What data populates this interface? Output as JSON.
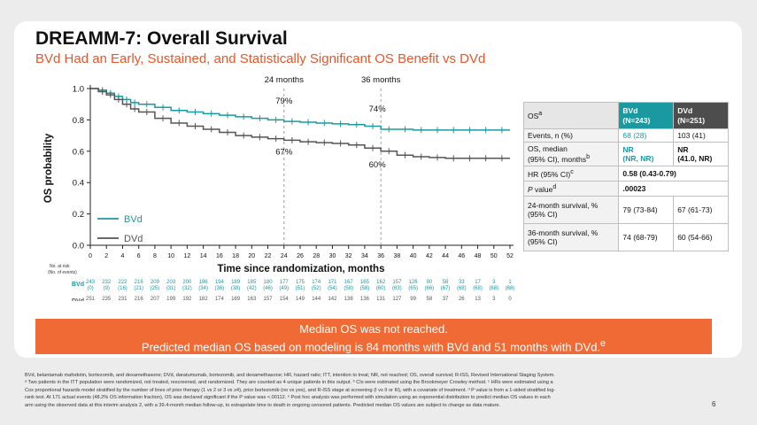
{
  "page": {
    "title": "DREAMM-7: Overall Survival",
    "subtitle": "BVd Had an Early, Sustained, and Statistically Significant OS Benefit vs DVd",
    "page_number": "6"
  },
  "colors": {
    "bvd": "#1a9aa0",
    "dvd": "#555555",
    "banner": "#f06a35",
    "accent": "#e8562a"
  },
  "chart_data": {
    "type": "line",
    "xlabel": "Time since randomization, months",
    "ylabel": "OS probability",
    "xlim": [
      0,
      52
    ],
    "ylim": [
      0,
      1.0
    ],
    "xticks": [
      "0",
      "2",
      "4",
      "6",
      "8",
      "10",
      "12",
      "14",
      "16",
      "18",
      "20",
      "22",
      "24",
      "26",
      "28",
      "30",
      "32",
      "34",
      "36",
      "38",
      "40",
      "42",
      "44",
      "46",
      "48",
      "50",
      "52"
    ],
    "yticks": [
      "0.0",
      "0.2",
      "0.4",
      "0.6",
      "0.8",
      "1.0"
    ],
    "landmarks": [
      {
        "x": 24,
        "label": "24 months",
        "bvd_pct": "79%",
        "dvd_pct": "67%"
      },
      {
        "x": 36,
        "label": "36 months",
        "bvd_pct": "74%",
        "dvd_pct": "60%"
      }
    ],
    "series": [
      {
        "name": "BVd",
        "x": [
          0,
          1,
          2,
          3,
          4,
          5,
          6,
          8,
          10,
          12,
          14,
          16,
          18,
          20,
          22,
          24,
          26,
          28,
          30,
          32,
          34,
          36,
          38,
          40,
          42,
          44,
          46,
          48,
          50,
          52
        ],
        "values": [
          1.0,
          0.99,
          0.97,
          0.95,
          0.93,
          0.91,
          0.9,
          0.88,
          0.86,
          0.85,
          0.84,
          0.83,
          0.82,
          0.81,
          0.8,
          0.79,
          0.785,
          0.78,
          0.775,
          0.77,
          0.76,
          0.74,
          0.74,
          0.735,
          0.735,
          0.735,
          0.735,
          0.735,
          0.735,
          0.735
        ]
      },
      {
        "name": "DVd",
        "x": [
          0,
          1,
          2,
          3,
          4,
          5,
          6,
          8,
          10,
          12,
          14,
          16,
          18,
          20,
          22,
          24,
          26,
          28,
          30,
          32,
          34,
          36,
          38,
          40,
          42,
          44,
          46,
          48,
          50,
          52
        ],
        "values": [
          1.0,
          0.98,
          0.96,
          0.93,
          0.9,
          0.87,
          0.85,
          0.81,
          0.78,
          0.76,
          0.74,
          0.72,
          0.7,
          0.69,
          0.68,
          0.67,
          0.66,
          0.655,
          0.65,
          0.64,
          0.62,
          0.6,
          0.575,
          0.565,
          0.56,
          0.555,
          0.555,
          0.555,
          0.555,
          0.555
        ]
      }
    ],
    "legend": [
      {
        "name": "BVd"
      },
      {
        "name": "DVd"
      }
    ],
    "risk_table": {
      "header": [
        "No. at risk",
        "(No. of events)"
      ],
      "rows": [
        {
          "name": "BVd",
          "at_risk": [
            "243",
            "232",
            "222",
            "216",
            "209",
            "203",
            "200",
            "196",
            "194",
            "189",
            "185",
            "180",
            "177",
            "175",
            "174",
            "171",
            "167",
            "165",
            "162",
            "157",
            "126",
            "90",
            "58",
            "33",
            "17",
            "3",
            "1"
          ],
          "events": [
            "(0)",
            "(9)",
            "(16)",
            "(21)",
            "(25)",
            "(31)",
            "(32)",
            "(34)",
            "(36)",
            "(38)",
            "(42)",
            "(46)",
            "(49)",
            "(51)",
            "(52)",
            "(54)",
            "(58)",
            "(58)",
            "(60)",
            "(63)",
            "(65)",
            "(66)",
            "(67)",
            "(68)",
            "(68)",
            "(68)",
            "(68)"
          ]
        },
        {
          "name": "DVd",
          "at_risk": [
            "251",
            "235",
            "231",
            "216",
            "207",
            "199",
            "192",
            "182",
            "174",
            "169",
            "163",
            "157",
            "154",
            "149",
            "144",
            "142",
            "138",
            "136",
            "131",
            "127",
            "99",
            "58",
            "37",
            "26",
            "13",
            "3",
            "0"
          ],
          "events": [
            "(0)",
            "(13)",
            "(15)",
            "(26)",
            "(34)",
            "(40)",
            "(47)",
            "(53)",
            "(62)",
            "(66)",
            "(71)",
            "(75)",
            "(78)",
            "(81)",
            "(85)",
            "(85)",
            "(88)",
            "(90)",
            "(94)",
            "(95)",
            "(100)",
            "(102)",
            "(103)",
            "(103)",
            "(103)",
            "(103)",
            "(103)"
          ]
        }
      ]
    }
  },
  "table": {
    "header": {
      "label": "OS",
      "label_sup": "a",
      "bvd": "BVd",
      "bvd_n": "(N=243)",
      "dvd": "DVd",
      "dvd_n": "(N=251)"
    },
    "rows": [
      {
        "label": "Events, n (%)",
        "bvd": "68 (28)",
        "dvd": "103 (41)"
      },
      {
        "label": "OS, median",
        "label2": "(95% CI), months",
        "label_sup": "b",
        "bvd": "NR",
        "bvd2": "(NR, NR)",
        "dvd": "NR",
        "dvd2": "(41.0, NR)"
      },
      {
        "label": "HR  (95% CI)",
        "label_sup": "c",
        "value": "0.58 (0.43-0.79)"
      },
      {
        "label_italic": "P",
        "label": " value",
        "label_sup": "d",
        "value": ".00023"
      },
      {
        "label": "24-month survival, %",
        "label2": "(95% CI)",
        "bvd": "79 (73-84)",
        "dvd": "67 (61-73)"
      },
      {
        "label": "36-month survival, %",
        "label2": "(95% CI)",
        "bvd": "74 (68-79)",
        "dvd": "60 (54-66)"
      }
    ]
  },
  "banner": {
    "line1": "Median OS was not reached.",
    "line2": "Predicted median OS based on modeling is 84 months with BVd and 51 months with DVd.",
    "line2_sup": "e"
  },
  "footnotes": [
    "BVd, belantamab mafodotin, bortezomib, and dexamethasone; DVd, daratumumab, bortezomib, and dexamethasone; HR, hazard ratio; ITT, intention to treat; NR, not reached; OS, overall survival; R-ISS, Revised International Staging System.",
    "ᵃ Two patients in the ITT population were randomized, not treated, rescreened, and randomized. They are counted as 4 unique patients in this output. ᵇ CIs were estimated using the Brookmeyer Crowley method. ᶜ HRs were estimated using a",
    "Cox proportional hazards model stratified by the number of lines of prior therapy (1 vs 2 or 3 vs ≥4), prior bortezomib (no vs yes), and R-ISS stage at screening (I vs II or III), with a covariate of treatment. ᵈ P value is from a 1-sided stratified log-",
    "rank test. At 171 actual events (48.2% OS information fraction), OS was declared significant if the P value was <.00112. ᵉ Post hoc analysis was performed with simulation using an exponential distribution to predict median OS values in each",
    "arm using the observed data at this interim analysis 2, with a 39.4-month median follow-up, to extrapolate time to death in ongoing censored patients. Predicted median OS values are subject to change as data mature."
  ]
}
